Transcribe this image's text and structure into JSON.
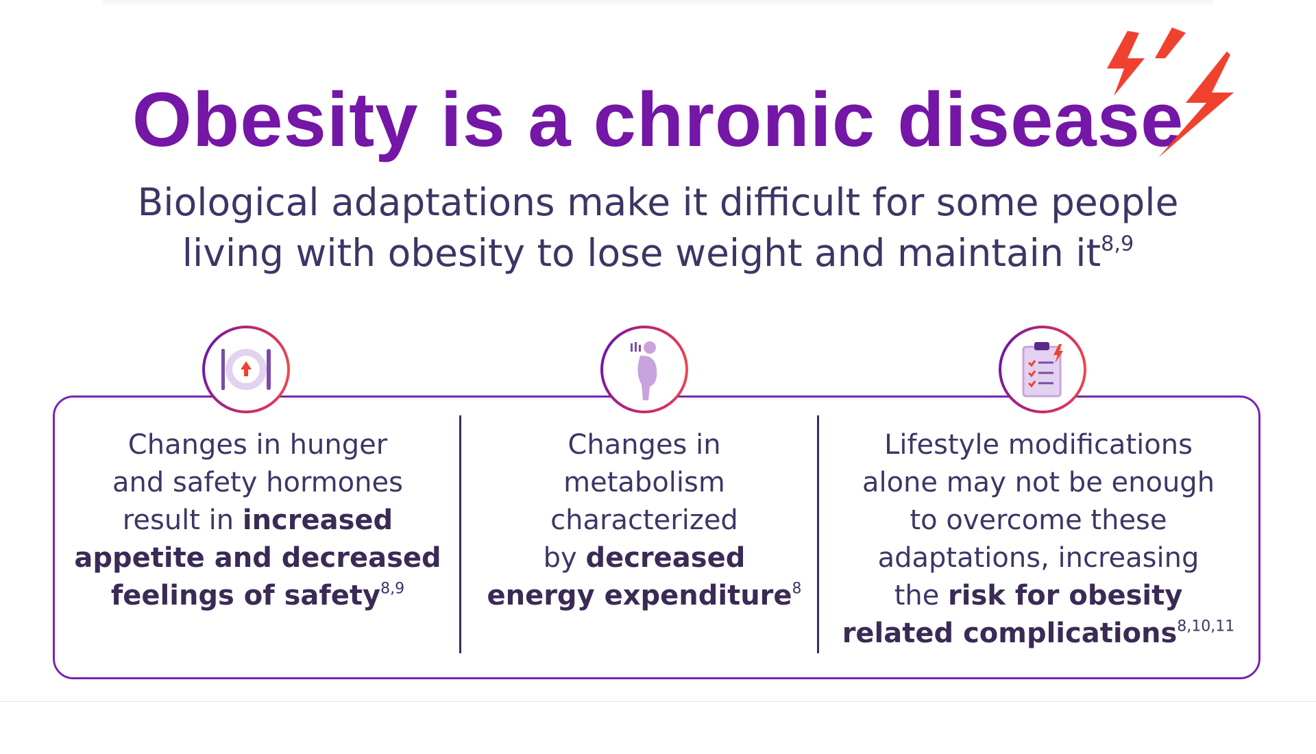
{
  "title": "Obesity is a chronic disease",
  "subtitle": {
    "line1": "Biological adaptations make it difficult for some people",
    "line2": "living with obesity to lose weight and maintain it",
    "ref": "8,9"
  },
  "columns": [
    {
      "icon": "plate-utensils-arrow-up-icon",
      "lines": [
        "Changes in hunger",
        "and safety hormones",
        "result in "
      ],
      "bold": [
        "increased",
        "appetite and decreased",
        "feelings of safety"
      ],
      "ref": "8,9"
    },
    {
      "icon": "body-metabolism-icon",
      "lines": [
        "Changes in",
        "metabolism",
        "characterized",
        "by "
      ],
      "bold": [
        "decreased",
        "energy expenditure"
      ],
      "ref": "8"
    },
    {
      "icon": "clipboard-checklist-icon",
      "lines": [
        "Lifestyle modifications",
        "alone may not be enough",
        "to overcome these",
        "adaptations, increasing",
        "the "
      ],
      "bold": [
        "risk for obesity",
        "related complications"
      ],
      "ref": "8,10,11"
    }
  ],
  "colors": {
    "purple": "#7416a6",
    "red": "#f04a3a",
    "text": "#3e3566"
  }
}
